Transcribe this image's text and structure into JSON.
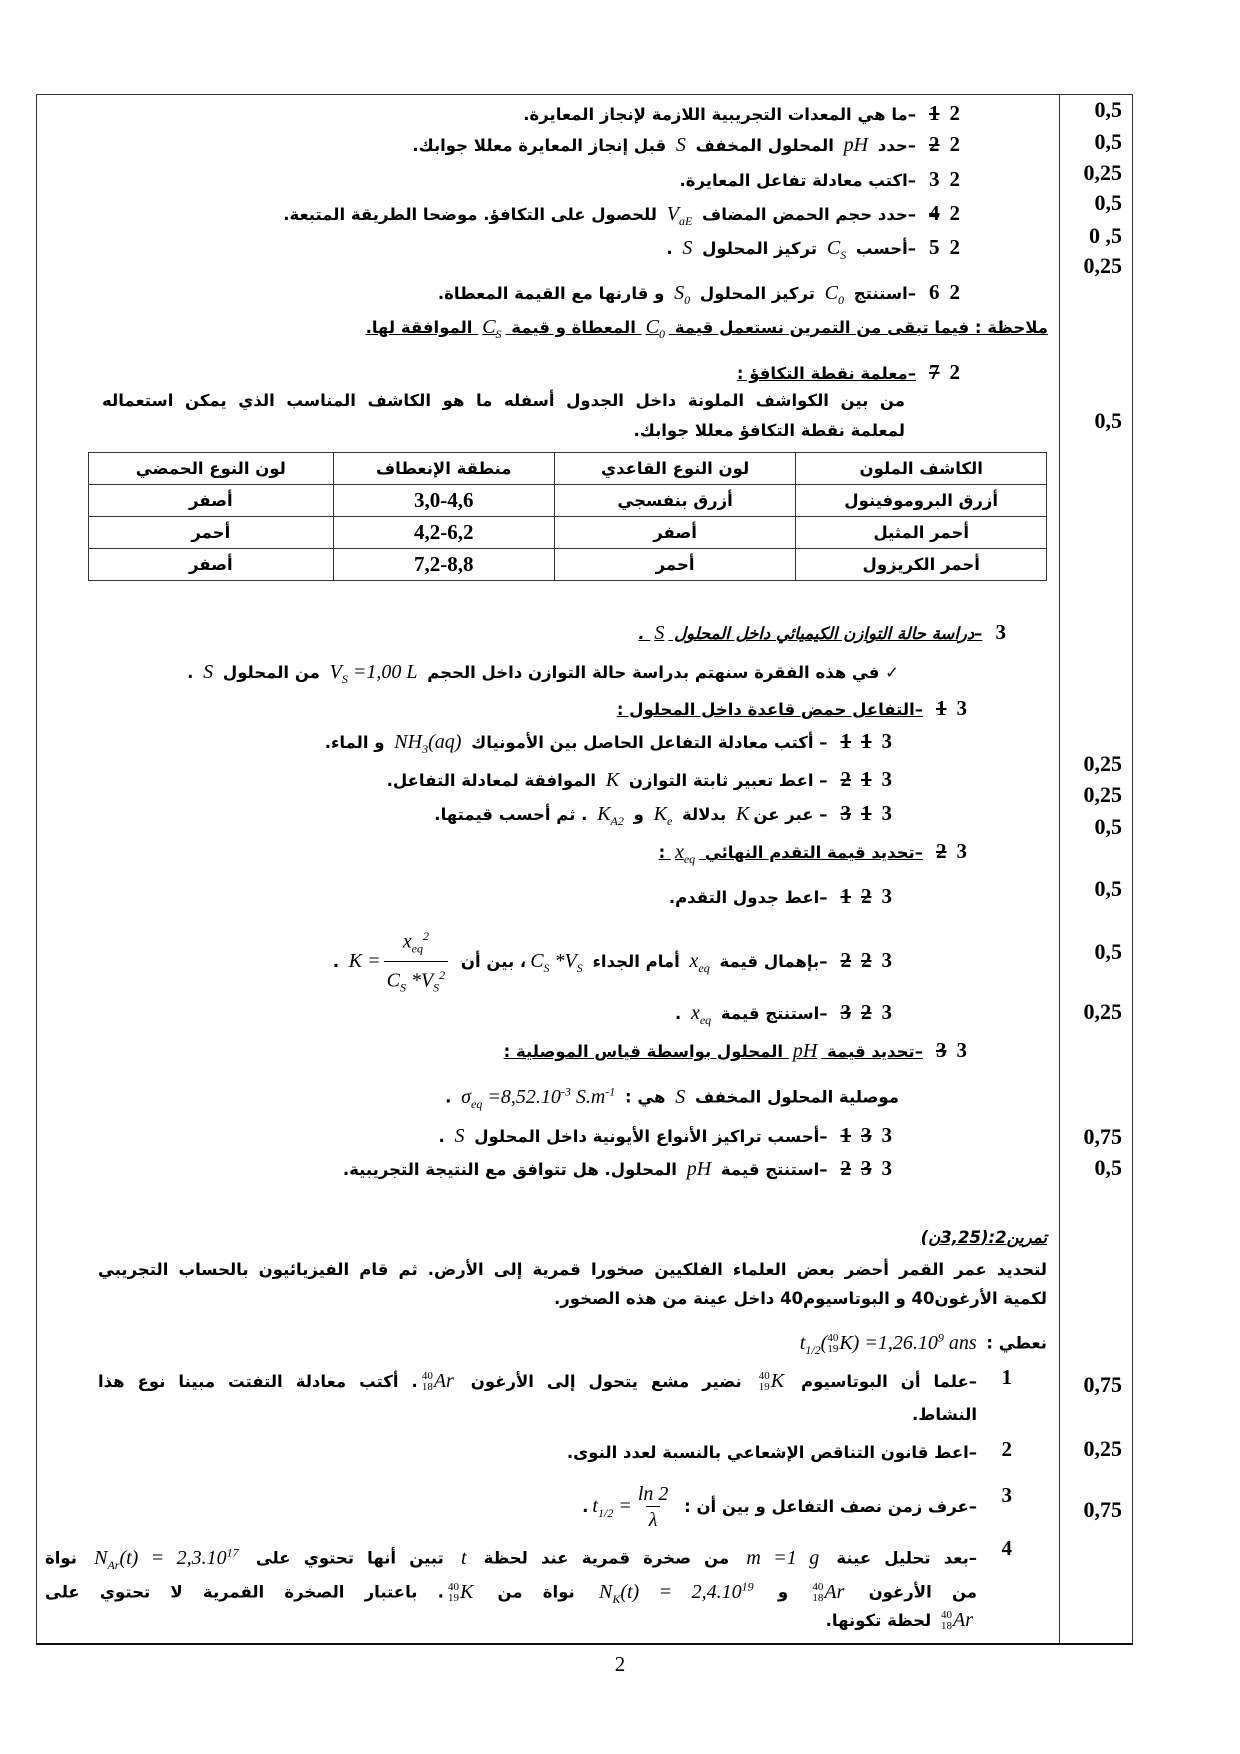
{
  "page_number": "2",
  "exercise1": {
    "items": [
      {
        "num": "1 2",
        "struck": 1,
        "text": "–ما هي المعدات التجريبية اللازمة لإنجاز المعايرة.",
        "score": "0,5"
      },
      {
        "num": "2 2",
        "struck": 1,
        "text": "–حدد $pH$ المحلول المخفف $S$ قبل إنجاز المعايرة معللا جوابك.",
        "score": "0,5"
      },
      {
        "num": "3 2",
        "struck": 0,
        "text": "–اكتب معادلة تفاعل المعايرة.",
        "score": "0,25"
      },
      {
        "num": "4 2",
        "struck": 1,
        "text": "–حدد حجم الحمض المضاف $V_{aE}$ للحصول على التكافؤ. موضحا الطريقة المتبعة.",
        "score": "0,5"
      },
      {
        "num": "5 2",
        "struck": 0,
        "text": "–أحسب $C_{S}$ تركيز المحلول $S$ .",
        "score": "0 ,5"
      },
      {
        "num": "6 2",
        "struck": 0,
        "text": "–استنتج $C_{0}$ تركيز المحلول $S_{0}$ و قارنها مع القيمة المعطاة.",
        "score": "0,25"
      }
    ],
    "note": {
      "text": "ملاحظة : فيما تبقى من التمرين نستعمل قيمة $C_{0}$ المعطاة و قيمة $C_{S}$ الموافقة لها.",
      "underline": true
    },
    "item7": {
      "num": "7 2",
      "struck": 1,
      "text": "–معلمة نقطة التكافؤ :",
      "underline": true
    },
    "item7_paragraph": [
      "من بين الكواشف الملونة داخل الجدول أسفله ما هو الكاشف المناسب الذي يمكن استعماله",
      "لمعلمة نقطة التكافؤ معللا جوابك."
    ],
    "item7_score": "0,5",
    "table": {
      "headers": [
        "الكاشف الملون",
        "لون النوع القاعدي",
        "منطقة الإنعطاف",
        "لون النوع الحمضي"
      ],
      "rows": [
        [
          "أزرق البروموفينول",
          "أزرق بنفسجي",
          "3,0-4,6",
          "أصفر"
        ],
        [
          "أحمر المثيل",
          "أصفر",
          "4,2-6,2",
          "أحمر"
        ],
        [
          "أحمر الكريزول",
          "أحمر",
          "7,2-8,8",
          "أصفر"
        ]
      ]
    },
    "section3": {
      "title": {
        "num": "3",
        "struck": 0,
        "text": "–دراسة حالة التوازن الكيميائي داخل المحلول $S$ .",
        "underline": true,
        "italic": true
      },
      "intro": {
        "check": "✓",
        "text": "في هذه الفقرة سنهتم بدراسة حالة التوازن داخل الحجم $V_{S} =1,00 L$ من المحلول $S$ ."
      },
      "sub1": {
        "num": "1 3",
        "struck": 1,
        "text": "–التفاعل حمض قاعدة داخل المحلول :",
        "underline": true
      },
      "sub1_items": [
        {
          "num": "1 1 3",
          "struck": 2,
          "text": "– أكتب معادلة التفاعل الحاصل بين الأمونياك $NH_{3}(aq)$ و الماء.",
          "score": "0,25"
        },
        {
          "num": "2 1 3",
          "struck": 2,
          "text": "– اعط تعبير ثابتة التوازن $K$ الموافقة لمعادلة التفاعل.",
          "score": "0,25"
        },
        {
          "num": "3 1 3",
          "struck": 2,
          "text": "– عبر عن$K$ بدلالة $K_{e}$ و $K_{A2}$ . ثم أحسب قيمتها.",
          "score": "0,5"
        }
      ],
      "sub2": {
        "num": "2 3",
        "struck": 1,
        "text": "–تحديد قيمة التقدم النهائي $x_{eq}$ :",
        "underline": true
      },
      "sub2_items": [
        {
          "num": "1 2 3",
          "struck": 2,
          "text": "–اعط جدول التقدم.",
          "score": "0,5"
        },
        {
          "num": "2 2 3",
          "struck": 2,
          "text": "–بإهمال قيمة $x_{eq}$ أمام الجداء $C_{S} *V_{S}$، بين أن $K =⟦x_{eq}^{2}¦C_{S} *V_{S}^{2}⟧$ .",
          "score": "0,5"
        },
        {
          "num": "3 2 3",
          "struck": 2,
          "text": "–استنتج قيمة $x_{eq}$ .",
          "score": "0,25"
        }
      ],
      "sub3": {
        "num": "3 3",
        "struck": 1,
        "text": "–تحديد قيمة $pH$ المحلول بواسطة قياس الموصلية :",
        "underline": true
      },
      "sub3_intro": "موصلية المحلول المخفف $S$ هي : $σ_{eq} =8,52.10^{-3} S.m^{-1}$ .",
      "sub3_items": [
        {
          "num": "1 3 3",
          "struck": 2,
          "text": "–أحسب تراكيز الأنواع الأيونية داخل المحلول $S$ .",
          "score": "0,75"
        },
        {
          "num": "2 3 3",
          "struck": 2,
          "text": "–استنتج قيمة $pH$ المحلول. هل تتوافق مع النتيجة التجريبية.",
          "score": "0,5"
        }
      ]
    }
  },
  "exercise2": {
    "title": "تمرين2:(3,25ن)",
    "paragraph": [
      "لتحديد عمر القمر أحضر بعض العلماء الفلكيين صخورا قمرية إلى الأرض. ثم قام الفيزيائيون بالحساب التجريبي",
      "لكمية الأرغون40 و البوتاسيوم40 داخل عينة من هذه الصخور."
    ],
    "given": "نعطي : $t_{1/2}([40|19]K) =1,26.10^{9} ans$",
    "questions": [
      {
        "num": "1",
        "struck": 0,
        "lines": [
          "–علما أن البوتاسيوم $[40|19]K$ نضير مشع يتحول إلى الأرغون $[40|18]Ar$. أكتب معادلة التفتت مبينا نوع هذا",
          "النشاط."
        ],
        "score": "0,75"
      },
      {
        "num": "2",
        "struck": 0,
        "lines": [
          "–اعط قانون التناقص الإشعاعي بالنسبة لعدد النوى."
        ],
        "score": "0,25"
      },
      {
        "num": "3",
        "struck": 0,
        "lines": [
          "–عرف زمن نصف التفاعل و بين أن : $t_{1/2} =⟦ln 2¦λ⟧$."
        ],
        "score": "0,75"
      },
      {
        "num": "4",
        "struck": 0,
        "lines": [
          "–بعد تحليل عينة $m =1 g$ من صخرة قمرية عند لحظة $t$ تبين أنها تحتوي على $N_{Ar}(t) = 2,3.10^{17}$ نواة",
          "من الأرغون $[40|18]Ar$ و $N_{K}(t) = 2,4.10^{19}$ نواة من $[40|19]K$. باعتبار الصخرة القمرية لا تحتوي على",
          "$[40|18]Ar$ لحظة تكونها."
        ]
      }
    ]
  }
}
